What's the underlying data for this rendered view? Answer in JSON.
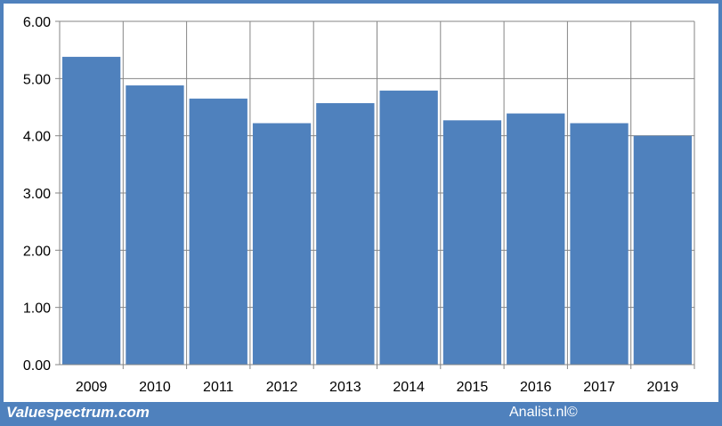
{
  "chart_data": {
    "type": "bar",
    "categories": [
      "2009",
      "2010",
      "2011",
      "2012",
      "2013",
      "2014",
      "2015",
      "2016",
      "2017",
      "2019"
    ],
    "values": [
      5.38,
      4.88,
      4.65,
      4.22,
      4.57,
      4.79,
      4.27,
      4.39,
      4.22,
      4.0
    ],
    "title": "",
    "xlabel": "",
    "ylabel": "",
    "ylim": [
      0,
      6
    ],
    "yticks": [
      "0.00",
      "1.00",
      "2.00",
      "3.00",
      "4.00",
      "5.00",
      "6.00"
    ],
    "grid": "vertical and horizontal",
    "bar_color": "#4f81bd"
  },
  "footer": {
    "brand": "Valuespectrum.com",
    "credit": "Analist.nl©",
    "color": "#4f81bd"
  }
}
